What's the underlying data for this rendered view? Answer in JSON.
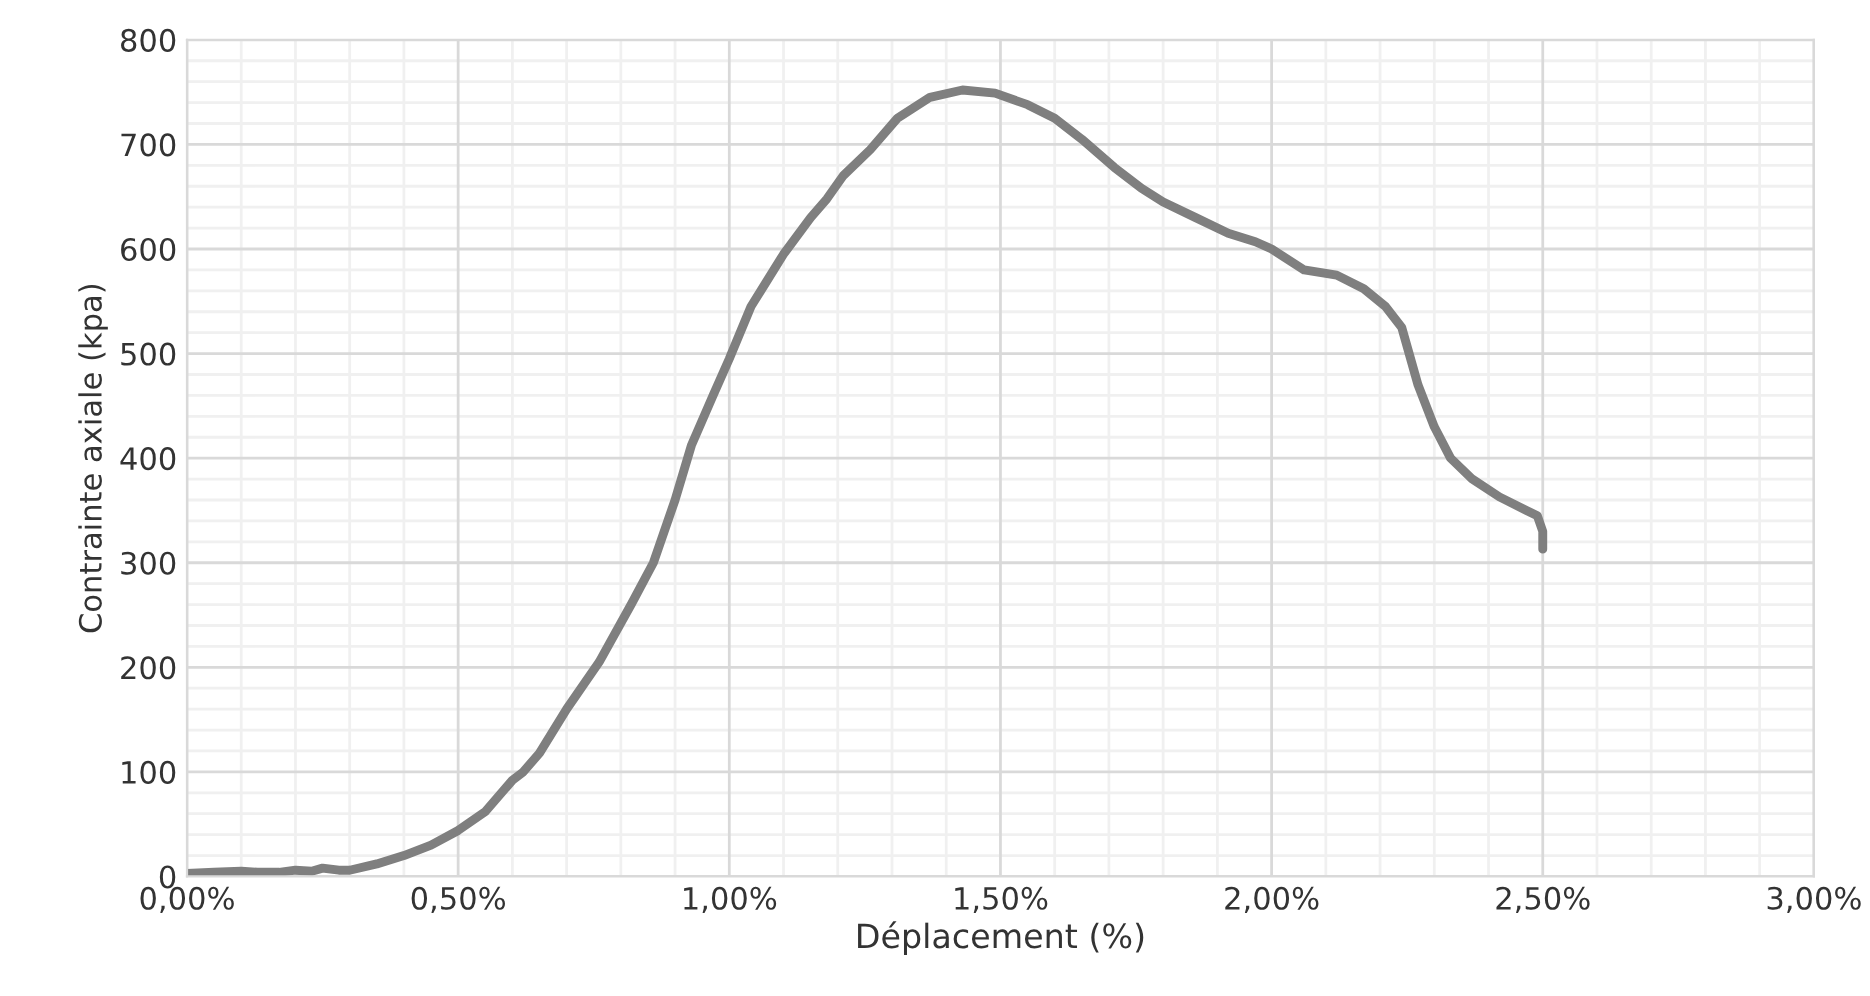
{
  "chart_data": {
    "type": "line",
    "xlabel": "Déplacement (%)",
    "ylabel": "Contrainte axiale (kpa)",
    "x": [
      0,
      0.05,
      0.1,
      0.13,
      0.17,
      0.2,
      0.23,
      0.25,
      0.28,
      0.3,
      0.35,
      0.4,
      0.45,
      0.5,
      0.55,
      0.6,
      0.62,
      0.65,
      0.7,
      0.76,
      0.82,
      0.86,
      0.9,
      0.93,
      0.97,
      1.0,
      1.04,
      1.07,
      1.1,
      1.15,
      1.18,
      1.21,
      1.26,
      1.31,
      1.37,
      1.43,
      1.49,
      1.55,
      1.6,
      1.65,
      1.71,
      1.76,
      1.8,
      1.86,
      1.92,
      1.97,
      2.0,
      2.03,
      2.06,
      2.12,
      2.17,
      2.21,
      2.24,
      2.27,
      2.3,
      2.33,
      2.37,
      2.42,
      2.47,
      2.49,
      2.5,
      2.5
    ],
    "series": [
      {
        "color": "#7f7f7f",
        "values": [
          3,
          4,
          5,
          4,
          4,
          6,
          5,
          8,
          6,
          6,
          12,
          20,
          30,
          44,
          62,
          92,
          100,
          118,
          160,
          205,
          261,
          300,
          360,
          412,
          460,
          495,
          545,
          570,
          595,
          630,
          648,
          670,
          695,
          725,
          745,
          752,
          749,
          738,
          725,
          705,
          678,
          658,
          645,
          630,
          615,
          607,
          600,
          590,
          580,
          575,
          562,
          545,
          525,
          470,
          430,
          400,
          380,
          363,
          350,
          345,
          330,
          313
        ]
      }
    ],
    "xlim": [
      0,
      3
    ],
    "xticks": [
      {
        "value": 0,
        "label": "0,00%"
      },
      {
        "value": 0.5,
        "label": "0,50%"
      },
      {
        "value": 1,
        "label": "1,00%"
      },
      {
        "value": 1.5,
        "label": "1,50%"
      },
      {
        "value": 2,
        "label": "2,00%"
      },
      {
        "value": 2.5,
        "label": "2,50%"
      },
      {
        "value": 3,
        "label": "3,00%"
      }
    ],
    "ylim": [
      0,
      800
    ],
    "yticks": [
      0,
      100,
      200,
      300,
      400,
      500,
      600,
      700,
      800
    ],
    "grid": true,
    "line_style": "solid",
    "marker": "none"
  }
}
